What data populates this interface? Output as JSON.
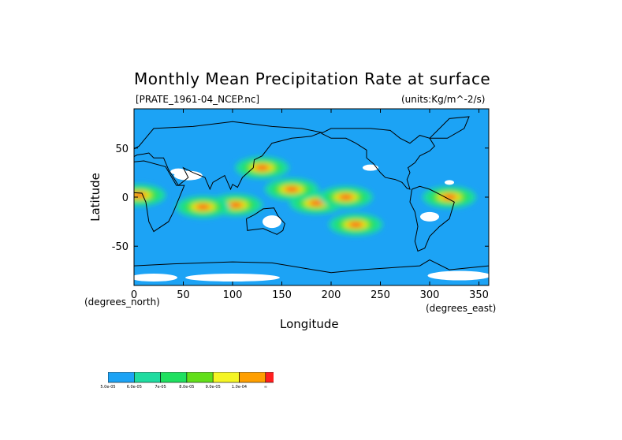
{
  "title": "Monthly Mean Precipitation Rate at surface",
  "subtitle_left": "[PRATE_1961-04_NCEP.nc]",
  "subtitle_right": "(units:Kg/m^-2/s)",
  "ylabel": "Latitude",
  "xlabel": "Longitude",
  "x_unit_left": "(degrees_north)",
  "x_unit_right": "(degrees_east)",
  "chart_data": {
    "type": "heatmap",
    "title": "Monthly Mean Precipitation Rate at surface",
    "xlabel": "Longitude",
    "ylabel": "Latitude",
    "xlim": [
      0,
      360
    ],
    "ylim": [
      -90,
      90
    ],
    "x_ticks": [
      "0",
      "50",
      "100",
      "150",
      "200",
      "250",
      "300",
      "350"
    ],
    "y_ticks": [
      "50",
      "0",
      "-50"
    ],
    "legend": {
      "colors": [
        "#1ca3f5",
        "#1fdca0",
        "#1fe060",
        "#62df1a",
        "#f5f524",
        "#ff9f00",
        "#ff1f1f"
      ],
      "labels": [
        "5.0e-05",
        "6.0e-05",
        "7e-05",
        "8.0e-05",
        "9.0e-05",
        "1.0e-04",
        "∞"
      ]
    },
    "rain_bands": [
      {
        "lon": 185,
        "lat": -6,
        "level": 6
      },
      {
        "lon": 215,
        "lat": 0,
        "level": 6
      },
      {
        "lon": 160,
        "lat": 8,
        "level": 6
      },
      {
        "lon": 130,
        "lat": 30,
        "level": 6
      },
      {
        "lon": 103,
        "lat": -8,
        "level": 6
      },
      {
        "lon": 70,
        "lat": -10,
        "level": 6
      },
      {
        "lon": 225,
        "lat": -28,
        "level": 6
      },
      {
        "lon": 320,
        "lat": 0,
        "level": 6
      },
      {
        "lon": 5,
        "lat": 2,
        "level": 6
      }
    ]
  }
}
